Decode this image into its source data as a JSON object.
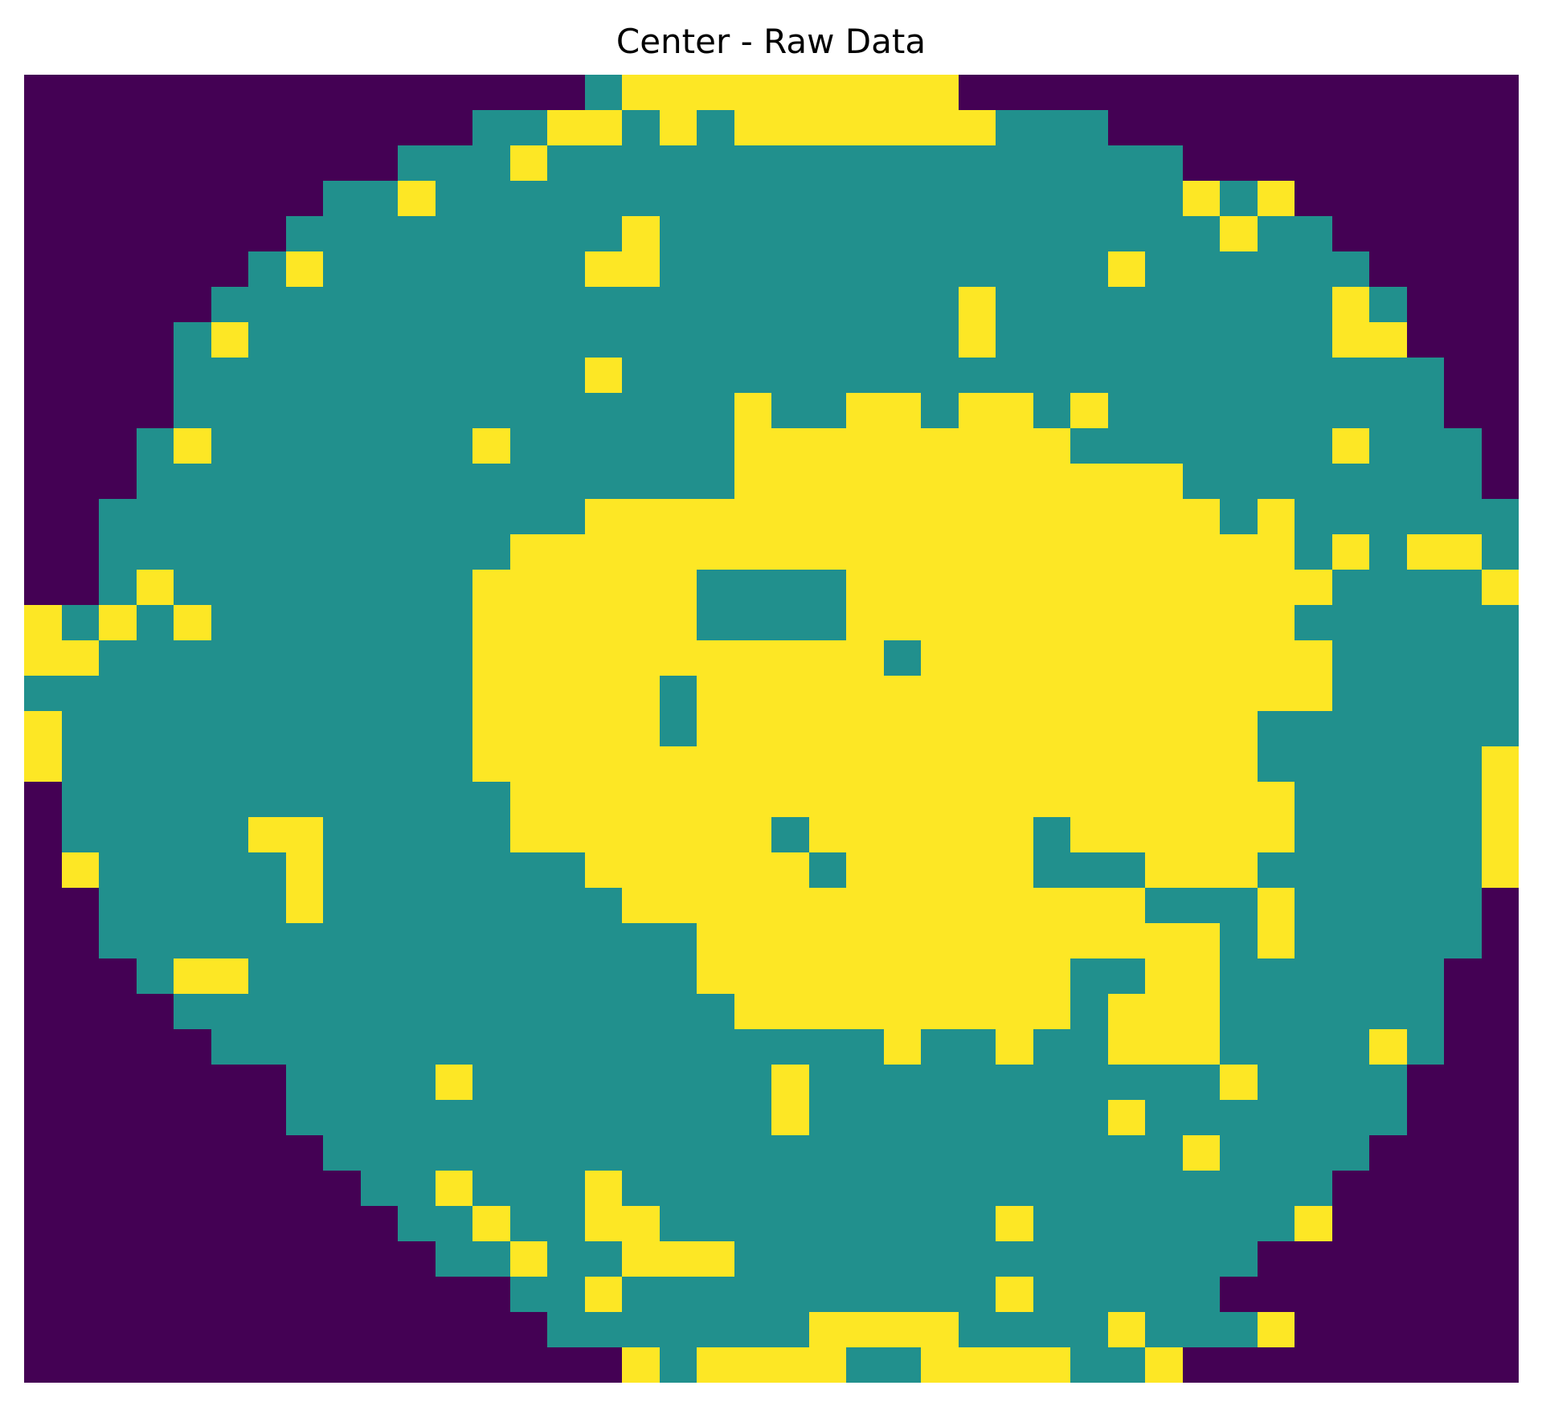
{
  "chart_data": {
    "type": "heatmap",
    "title": "Center - Raw Data",
    "xlabel": "",
    "ylabel": "",
    "axes_visible": false,
    "colormap": "viridis",
    "value_colors": {
      "0": "#440154",
      "1": "#21908d",
      "2": "#fde725"
    },
    "legend": "",
    "rows": [
      "0000000000000001222222222000000000000000",
      "0000000000001122121222222211100000000000",
      "0000000000111211111111111111111000000000",
      "0000000011211111111111111111111212000000",
      "0000000111111111211111111111111121100000",
      "0000001211111112211111111111121111110000",
      "0000011111111111111111111211111111121000",
      "0000121111111111111111111211111111122000",
      "0000111111111112111111111111111111111100",
      "0000111111111111111211221221211111111100",
      "0001211111112111111222222222111111121110",
      "0001111111111111111222222222222111111110",
      "0011111111111112222222222222222212111111",
      "0011111111111222222222222222222222121221",
      "0012111111112222221111222222222222211112",
      "2121211111112222221111222222222222111111",
      "2211111111112222222222212222222222211111",
      "1111111111112222212222222222222222211111",
      "2111111111112222212222222222222221111111",
      "2111111111112222222222222222222221111112",
      "0111111111111222222222222222222222111112",
      "0111112211111222222212222221222222111112",
      "0211111211111112222221222221112221111112",
      "0011111211111111222222222222221112111110",
      "0011111111111111112222222222222212111110",
      "0001221111111111112222222222112211111100",
      "0000111111111111111222222222122211111100",
      "0000011111111111111111121121122211112100",
      "0000000111121111111121111111111121111000",
      "0000000111111111111121111111121111111000",
      "0000000011111111111111111111111211110000",
      "0000000001121112111111111111111111100000",
      "0000000000112112211111111121111111200000",
      "0000000000011211222111111111111110000000",
      "0000000000000112111111111121111100000000",
      "0000000000000011111112222111121112000000",
      "0000000000000000212222112222112000000000"
    ]
  }
}
